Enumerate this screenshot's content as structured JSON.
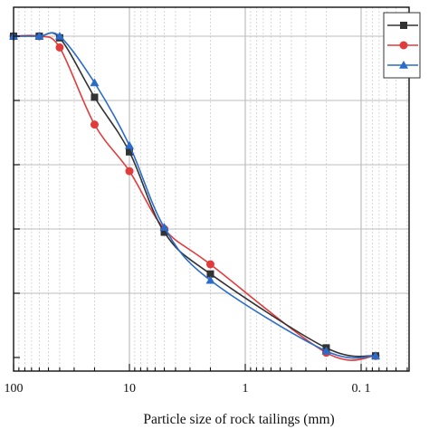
{
  "chart_data": {
    "type": "line",
    "title": "",
    "xlabel": "Particle size of rock tailings (mm)",
    "ylabel": "",
    "x_scale": "log",
    "x_reversed": true,
    "xlim": [
      100,
      0.05
    ],
    "ylim": [
      0,
      100
    ],
    "x_tick_labels": [
      {
        "value": 100,
        "label": "100"
      },
      {
        "value": 10,
        "label": "10"
      },
      {
        "value": 1,
        "label": "1"
      },
      {
        "value": 0.1,
        "label": "0. 1"
      }
    ],
    "y_ticks": [
      0,
      20,
      40,
      60,
      80,
      100
    ],
    "grid": true,
    "legend": {
      "placement": "top-right",
      "entries_visible": 3
    },
    "series": [
      {
        "marker": "square",
        "color": "#333333",
        "x": [
          100,
          60,
          40,
          20,
          10,
          5,
          2,
          0.2,
          0.075
        ],
        "y": [
          100,
          100,
          99.5,
          81,
          64,
          39,
          26,
          3,
          0.5
        ]
      },
      {
        "marker": "circle",
        "color": "#e03c3c",
        "x": [
          100,
          60,
          40,
          20,
          10,
          5,
          2,
          0.2,
          0.075
        ],
        "y": [
          100,
          100,
          96.5,
          72.5,
          58,
          40,
          29,
          1.5,
          0.5
        ]
      },
      {
        "marker": "triangle",
        "color": "#2a6cc9",
        "x": [
          100,
          60,
          40,
          20,
          10,
          5,
          2,
          0.2,
          0.075
        ],
        "y": [
          100,
          100,
          100,
          85.5,
          66,
          40.5,
          24,
          2,
          0.5
        ]
      }
    ]
  }
}
